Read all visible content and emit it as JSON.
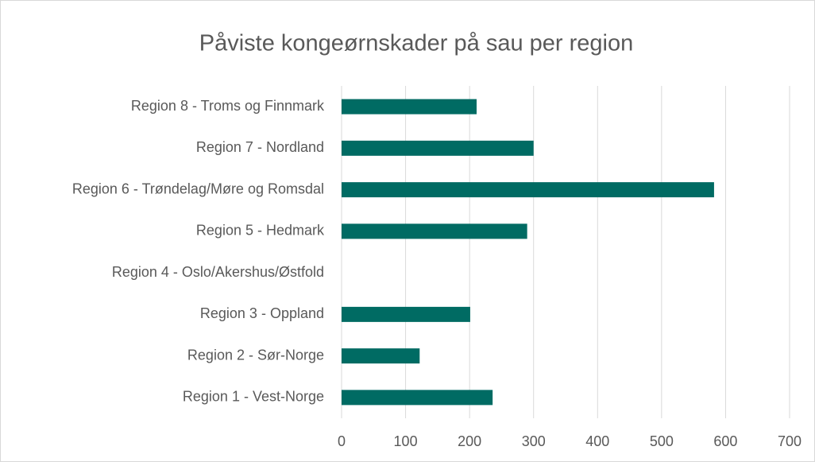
{
  "chart_data": {
    "type": "bar",
    "orientation": "horizontal",
    "title": "Påviste kongeørnskader på sau per region",
    "categories": [
      "Region 1 - Vest-Norge",
      "Region 2 - Sør-Norge",
      "Region 3 - Oppland",
      "Region 4 - Oslo/Akershus/Østfold",
      "Region 5 - Hedmark",
      "Region 6 - Trøndelag/Møre og Romsdal",
      "Region 7 - Nordland",
      "Region 8 - Troms og Finnmark"
    ],
    "values": [
      236,
      122,
      201,
      0,
      290,
      582,
      300,
      211
    ],
    "color": "#006b63",
    "xlim": [
      0,
      700
    ],
    "xticks": [
      0,
      100,
      200,
      300,
      400,
      500,
      600,
      700
    ],
    "grid": true
  }
}
